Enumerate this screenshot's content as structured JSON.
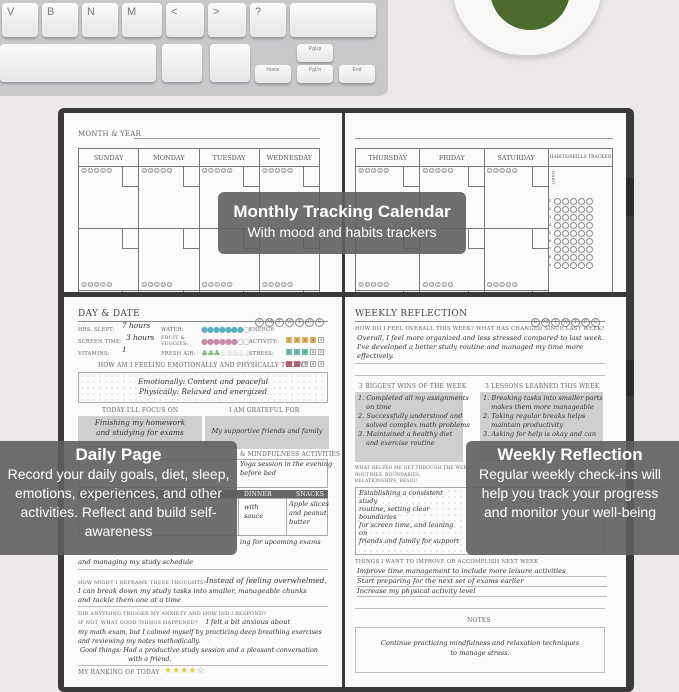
{
  "keyboard": {
    "keys": [
      "V",
      "B",
      "N",
      "M",
      "<",
      ">",
      "?"
    ],
    "nav_keys": [
      "PgUp",
      "Home",
      "PgDn",
      "End"
    ]
  },
  "monthly": {
    "month_year_label": "MONTH & YEAR",
    "days_left": [
      "SUNDAY",
      "MONDAY",
      "TUESDAY",
      "WEDNESDAY"
    ],
    "days_right": [
      "THURSDAY",
      "FRIDAY",
      "SATURDAY"
    ],
    "habits_label": "HABITS/SKILLS TRACKER",
    "habit_label": "HABIT",
    "tracker_rows": [
      "1",
      "2",
      "3",
      "4",
      "5",
      "6",
      "7",
      "8",
      "9"
    ]
  },
  "daily": {
    "title": "DAY & DATE",
    "weekdays": [
      "S",
      "M",
      "T",
      "W",
      "T",
      "F",
      "S"
    ],
    "hrs_slept_label": "HRS. SLEPT:",
    "hrs_slept": "7 hours",
    "screen_time_label": "SCREEN TIME:",
    "screen_time": "3 hours",
    "vitamins_label": "VITAMINS:",
    "vitamins": "1",
    "water_label": "WATER:",
    "fruit_label": "FRUIT & VEGGIES:",
    "fresh_air_label": "FRESH AIR:",
    "water_level": "7/8",
    "fruit_level": "6/8",
    "fresh_air_level": "3/8",
    "energy_label": "ENERGY:",
    "activity_label": "ACTIVITY:",
    "stress_label": "STRESS:",
    "energy": 4,
    "activity": 3,
    "stress": 2,
    "feeling_question": "HOW AM I FEELING EMOTIONALLY AND PHYSICALLY TODAY?",
    "feeling_1": "Emotionally: Content and peaceful",
    "feeling_2": "Physically: Relaxed and energized",
    "focus_label": "TODAY I'LL FOCUS ON",
    "focus_1": "Finishing my homework",
    "focus_2": "and studying for exams",
    "grateful_label": "I AM GRATEFUL FOR",
    "grateful": "My supportive friends and family",
    "mindfulness_label": "& MINDFULNESS ACTIVITIES",
    "mindfulness_1": "Yoga session in the evening",
    "mindfulness_2": "before bed",
    "dinner_label": "DINNER",
    "snacks_label": "SNACKS",
    "dinner_1": "with",
    "dinner_2": "sauce",
    "snacks_1": "Apple slices",
    "snacks_2": "and peanut butter",
    "worry_1": "ing for upcoming exams",
    "worry_2": "and managing my study schedule",
    "reframe_label": "HOW MIGHT I REFRAME THESE THOUGHTS?",
    "reframe_1": "Instead of feeling overwhelmed,",
    "reframe_2": "I can break down my study tasks into smaller, manageable chunks",
    "reframe_3": "and tackle them one at a time",
    "trigger_label": "DID ANYTHING TRIGGER MY ANXIETY AND HOW DID I RESPOND?",
    "good_label": "IF NOT, WHAT GOOD THINGS HAPPENED?",
    "trigger_1": "I felt a bit anxious about",
    "trigger_2": "my math exam, but I calmed myself by practicing deep breathing exercises",
    "trigger_3": "and reviewing my notes methodically.",
    "trigger_4": "Good things: Had a productive study session and a pleasant conversation",
    "trigger_5": "with a friend.",
    "ranking_label": "MY RANKING OF TODAY",
    "ranking": 4,
    "ranking_max": 5
  },
  "weekly": {
    "title": "WEEKLY REFLECTION",
    "weekdays": [
      "S",
      "M",
      "T",
      "W",
      "T",
      "F",
      "S"
    ],
    "question": "HOW DO I FEEL OVERALL THIS WEEK? WHAT HAS CHANGED SINCE LAST WEEK?",
    "answer_1": "Overall, I feel more organized and less stressed compared to last week.",
    "answer_2": "I've developed a better study routine and managed my time more",
    "answer_3": "effectively.",
    "wins_label": "3 BIGGEST WINS OF THE WEEK",
    "wins": [
      "1. Completed all my assignments",
      "on time",
      "2. Successfully understood and",
      "solved complex math problems",
      "3. Maintained a healthy diet",
      "and exercise routine"
    ],
    "lessons_label": "3 LESSONS LEARNED THIS WEEK",
    "lessons": [
      "1. Breaking tasks into smaller parts",
      "makes them more manageable",
      "2. Taking regular breaks helps",
      "maintain productivity",
      "3. Asking for help is okay and can"
    ],
    "helped_label_1": "WHAT HELPED ME GET THROUGH THE WEEK?",
    "helped_label_2": "ROUTINES, BOUNDARIES, RELATIONSHIPS, RESOU",
    "helped": [
      "Establishing a consistent study",
      "routine, setting clear boundaries",
      "for screen time, and leaning on",
      "friends and family for support"
    ],
    "improve_label": "THINGS I WANT TO IMPROVE OR ACCOMPLISH NEXT WEEK",
    "improve": [
      "Improve time management to include more leisure activities",
      "Start preparing for the next set of exams earlier",
      "Increase my physical activity level"
    ],
    "notes_label": "NOTES",
    "notes_1": "Continue practicing mindfulness and relaxation techniques",
    "notes_2": "to manage stress."
  },
  "overlays": {
    "monthly_title": "Monthly Tracking Calendar",
    "monthly_sub": "With mood and habits trackers",
    "daily_title": "Daily Page",
    "daily_body": "Record your daily goals, diet, sleep, emotions, experiences, and other activities. Reflect and build self-awareness",
    "weekly_title": "Weekly Reflection",
    "weekly_body": "Regular weekly check-ins will help you track your progress and monitor your well-being"
  }
}
